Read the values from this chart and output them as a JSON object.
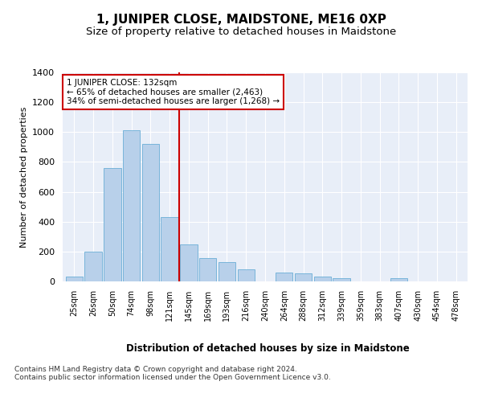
{
  "title": "1, JUNIPER CLOSE, MAIDSTONE, ME16 0XP",
  "subtitle": "Size of property relative to detached houses in Maidstone",
  "xlabel": "Distribution of detached houses by size in Maidstone",
  "ylabel": "Number of detached properties",
  "categories": [
    "25sqm",
    "26sqm",
    "50sqm",
    "74sqm",
    "98sqm",
    "121sqm",
    "145sqm",
    "169sqm",
    "193sqm",
    "216sqm",
    "240sqm",
    "264sqm",
    "288sqm",
    "312sqm",
    "339sqm",
    "359sqm",
    "383sqm",
    "407sqm",
    "430sqm",
    "454sqm",
    "478sqm"
  ],
  "values": [
    30,
    200,
    760,
    1010,
    920,
    430,
    250,
    155,
    130,
    80,
    0,
    60,
    55,
    30,
    20,
    0,
    0,
    20,
    0,
    0,
    0
  ],
  "bar_color": "#b8d0ea",
  "bar_edgecolor": "#6aaed6",
  "vline_color": "#cc0000",
  "annotation_text": "1 JUNIPER CLOSE: 132sqm\n← 65% of detached houses are smaller (2,463)\n34% of semi-detached houses are larger (1,268) →",
  "annotation_box_color": "#ffffff",
  "annotation_box_edgecolor": "#cc0000",
  "footer_text": "Contains HM Land Registry data © Crown copyright and database right 2024.\nContains public sector information licensed under the Open Government Licence v3.0.",
  "ylim": [
    0,
    1400
  ],
  "yticks": [
    0,
    200,
    400,
    600,
    800,
    1000,
    1200,
    1400
  ],
  "background_color": "#e8eef8",
  "fig_background": "#ffffff",
  "title_fontsize": 11,
  "subtitle_fontsize": 9.5,
  "bar_width": 0.9
}
